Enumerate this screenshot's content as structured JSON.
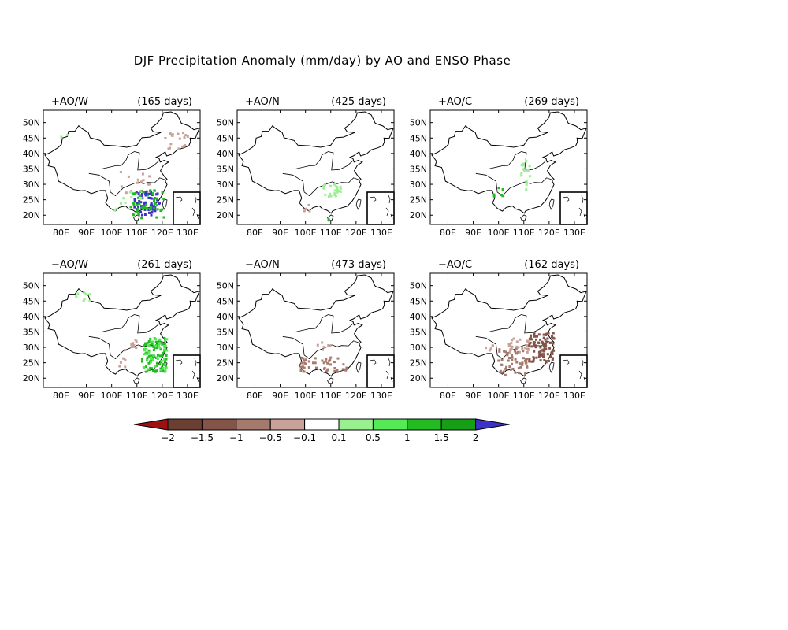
{
  "figure": {
    "title": "DJF Precipitation Anomaly (mm/day) by AO and ENSO Phase",
    "x_tick_labels": [
      "80E",
      "90E",
      "100E",
      "110E",
      "120E",
      "130E"
    ],
    "y_tick_labels": [
      "50N",
      "45N",
      "40N",
      "35N",
      "30N",
      "25N",
      "20N"
    ],
    "lon_range": [
      73,
      135
    ],
    "lat_range": [
      17,
      54
    ],
    "x_ticks": [
      80,
      90,
      100,
      110,
      120,
      130
    ],
    "y_ticks": [
      50,
      45,
      40,
      35,
      30,
      25,
      20
    ]
  },
  "panels": [
    {
      "label": "+AO/W",
      "days": "(165 days)"
    },
    {
      "label": "+AO/N",
      "days": "(425 days)"
    },
    {
      "label": "+AO/C",
      "days": "(269 days)"
    },
    {
      "label": "−AO/W",
      "days": "(261 days)"
    },
    {
      "label": "−AO/N",
      "days": "(473 days)"
    },
    {
      "label": "−AO/C",
      "days": "(162 days)"
    }
  ],
  "colorbar": {
    "labels": [
      "−2",
      "−1.5",
      "−1",
      "−0.5",
      "−0.1",
      "0.1",
      "0.5",
      "1",
      "1.5",
      "2"
    ],
    "colors": [
      "#a01010",
      "#6b4033",
      "#835447",
      "#a6796d",
      "#c8a198",
      "#ffffff",
      "#98f090",
      "#55e955",
      "#22bb22",
      "#179e17",
      "#3c32c8"
    ],
    "low_extend_color": "#a01010",
    "high_extend_color": "#3c32c8"
  },
  "chart_data": [
    {
      "type": "scatter",
      "title": "+AO/W",
      "subtitle": "(165 days)",
      "clusters": [
        {
          "lon": [
            109,
            119
          ],
          "lat": [
            20,
            28
          ],
          "color": "#3c32c8",
          "n": 70
        },
        {
          "lon": [
            107,
            121
          ],
          "lat": [
            19,
            28
          ],
          "color": "#22bb22",
          "n": 45
        },
        {
          "lon": [
            121,
            131
          ],
          "lat": [
            41,
            47
          ],
          "color": "#c8a198",
          "n": 18
        },
        {
          "lon": [
            103,
            118
          ],
          "lat": [
            27,
            34
          ],
          "color": "#c8a198",
          "n": 14
        },
        {
          "lon": [
            98,
            112
          ],
          "lat": [
            20,
            28
          ],
          "color": "#98f090",
          "n": 8
        },
        {
          "lon": [
            80,
            83
          ],
          "lat": [
            45,
            47
          ],
          "color": "#98f090",
          "n": 2
        }
      ]
    },
    {
      "type": "scatter",
      "title": "+AO/N",
      "subtitle": "(425 days)",
      "clusters": [
        {
          "lon": [
            107,
            114
          ],
          "lat": [
            26,
            30
          ],
          "color": "#98f090",
          "n": 22
        },
        {
          "lon": [
            99,
            103
          ],
          "lat": [
            21,
            25
          ],
          "color": "#c8a198",
          "n": 4
        },
        {
          "lon": [
            109,
            111
          ],
          "lat": [
            18,
            20
          ],
          "color": "#22bb22",
          "n": 2
        }
      ]
    },
    {
      "type": "scatter",
      "title": "+AO/C",
      "subtitle": "(269 days)",
      "clusters": [
        {
          "lon": [
            109,
            113
          ],
          "lat": [
            32,
            38
          ],
          "color": "#98f090",
          "n": 12
        },
        {
          "lon": [
            98,
            102
          ],
          "lat": [
            26,
            29
          ],
          "color": "#22bb22",
          "n": 6
        },
        {
          "lon": [
            110,
            113
          ],
          "lat": [
            28,
            31
          ],
          "color": "#98f090",
          "n": 3
        }
      ]
    },
    {
      "type": "scatter",
      "title": "−AO/W",
      "subtitle": "(261 days)",
      "clusters": [
        {
          "lon": [
            112,
            122
          ],
          "lat": [
            22,
            33
          ],
          "color": "#22bb22",
          "n": 90
        },
        {
          "lon": [
            112,
            122
          ],
          "lat": [
            22,
            33
          ],
          "color": "#55e955",
          "n": 40
        },
        {
          "lon": [
            104,
            110
          ],
          "lat": [
            29,
            33
          ],
          "color": "#c8a198",
          "n": 10
        },
        {
          "lon": [
            86,
            92
          ],
          "lat": [
            45,
            48
          ],
          "color": "#98f090",
          "n": 8
        },
        {
          "lon": [
            103,
            109
          ],
          "lat": [
            23,
            27
          ],
          "color": "#c8a198",
          "n": 5
        }
      ]
    },
    {
      "type": "scatter",
      "title": "−AO/N",
      "subtitle": "(473 days)",
      "clusters": [
        {
          "lon": [
            98,
            118
          ],
          "lat": [
            22,
            27
          ],
          "color": "#a6796d",
          "n": 45
        },
        {
          "lon": [
            104,
            110
          ],
          "lat": [
            29,
            33
          ],
          "color": "#c8a198",
          "n": 6
        }
      ]
    },
    {
      "type": "scatter",
      "title": "−AO/C",
      "subtitle": "(162 days)",
      "clusters": [
        {
          "lon": [
            112,
            122
          ],
          "lat": [
            25,
            35
          ],
          "color": "#835447",
          "n": 90
        },
        {
          "lon": [
            100,
            112
          ],
          "lat": [
            21,
            30
          ],
          "color": "#a6796d",
          "n": 55
        },
        {
          "lon": [
            104,
            112
          ],
          "lat": [
            28,
            33
          ],
          "color": "#c8a198",
          "n": 25
        },
        {
          "lon": [
            94,
            98
          ],
          "lat": [
            29,
            31
          ],
          "color": "#c8a198",
          "n": 5
        }
      ]
    }
  ]
}
